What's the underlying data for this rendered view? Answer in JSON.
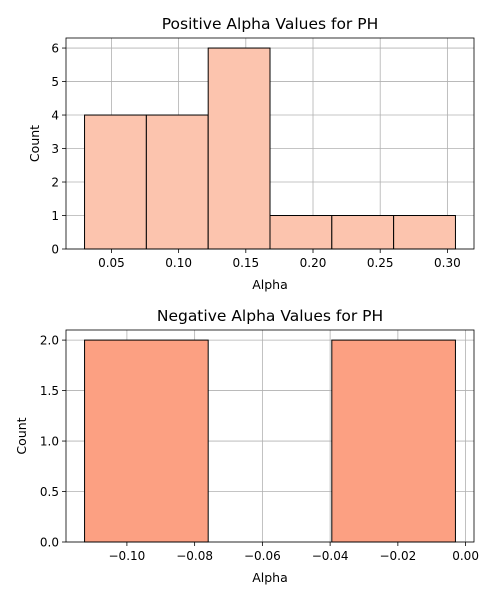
{
  "chart_data": [
    {
      "type": "bar",
      "title": "Positive Alpha Values for PH",
      "xlabel": "Alpha",
      "ylabel": "Count",
      "color": "#fcc4ae",
      "bins": [
        {
          "x0": 0.03,
          "x1": 0.076,
          "count": 4
        },
        {
          "x0": 0.076,
          "x1": 0.122,
          "count": 4
        },
        {
          "x0": 0.122,
          "x1": 0.168,
          "count": 6
        },
        {
          "x0": 0.168,
          "x1": 0.214,
          "count": 1
        },
        {
          "x0": 0.214,
          "x1": 0.26,
          "count": 1
        },
        {
          "x0": 0.26,
          "x1": 0.306,
          "count": 1
        }
      ],
      "xlim": [
        0.0162,
        0.3198
      ],
      "ylim": [
        0,
        6.3
      ],
      "xticks": [
        0.05,
        0.1,
        0.15,
        0.2,
        0.25,
        0.3
      ],
      "xtick_labels": [
        "0.05",
        "0.10",
        "0.15",
        "0.20",
        "0.25",
        "0.30"
      ],
      "yticks": [
        0,
        1,
        2,
        3,
        4,
        5,
        6
      ],
      "ytick_labels": [
        "0",
        "1",
        "2",
        "3",
        "4",
        "5",
        "6"
      ],
      "grid": true
    },
    {
      "type": "bar",
      "title": "Negative Alpha Values for PH",
      "xlabel": "Alpha",
      "ylabel": "Count",
      "color": "#fca082",
      "bins": [
        {
          "x0": -0.1125,
          "x1": -0.076,
          "count": 2
        },
        {
          "x0": -0.076,
          "x1": -0.0395,
          "count": 0
        },
        {
          "x0": -0.0395,
          "x1": -0.003,
          "count": 2
        }
      ],
      "xlim": [
        -0.11798,
        0.00248
      ],
      "ylim": [
        0,
        2.1
      ],
      "xticks": [
        -0.1,
        -0.08,
        -0.06,
        -0.04,
        -0.02,
        0.0
      ],
      "xtick_labels": [
        "−0.10",
        "−0.08",
        "−0.06",
        "−0.04",
        "−0.02",
        "0.00"
      ],
      "yticks": [
        0,
        0.5,
        1.0,
        1.5,
        2.0
      ],
      "ytick_labels": [
        "0.0",
        "0.5",
        "1.0",
        "1.5",
        "2.0"
      ],
      "grid": true
    }
  ]
}
